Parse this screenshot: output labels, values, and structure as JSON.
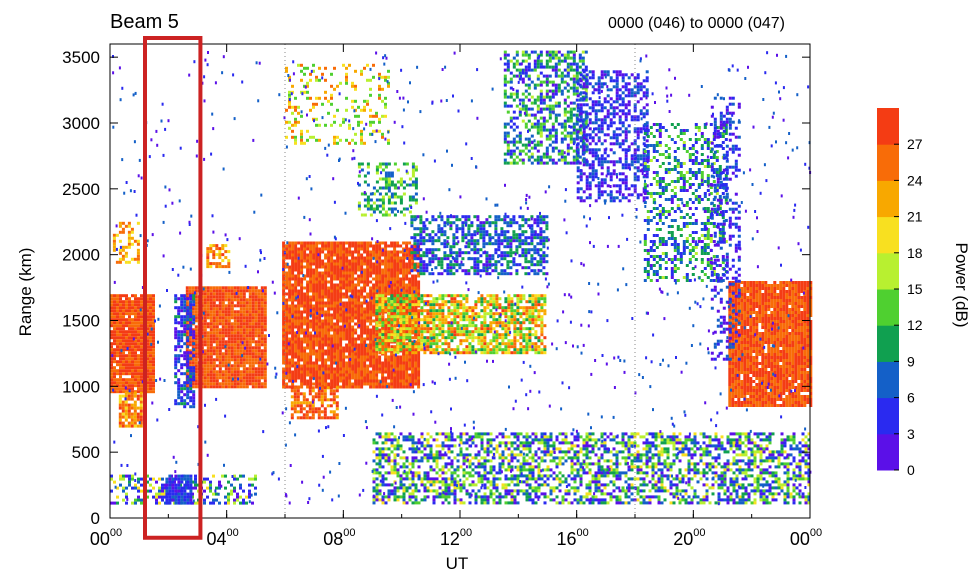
{
  "header": {
    "beam_label": "Beam 5",
    "time_range": "0000 (046) to 0000 (047)"
  },
  "chart_data": {
    "type": "heatmap",
    "xlabel": "UT",
    "ylabel": "Range (km)",
    "x_ticks": [
      {
        "value": 0,
        "hour": "00",
        "minute": "00"
      },
      {
        "value": 4,
        "hour": "04",
        "minute": "00"
      },
      {
        "value": 8,
        "hour": "08",
        "minute": "00"
      },
      {
        "value": 12,
        "hour": "12",
        "minute": "00"
      },
      {
        "value": 16,
        "hour": "16",
        "minute": "00"
      },
      {
        "value": 20,
        "hour": "20",
        "minute": "00"
      },
      {
        "value": 24,
        "hour": "00",
        "minute": "00"
      }
    ],
    "xlim": [
      0,
      24
    ],
    "ylim": [
      0,
      3600
    ],
    "y_ticks": [
      0,
      500,
      1000,
      1500,
      2000,
      2500,
      3000,
      3500
    ],
    "dotted_gridlines_x": [
      6,
      18
    ],
    "colorbar": {
      "label": "Power (dB)",
      "ticks": [
        0,
        3,
        6,
        9,
        12,
        15,
        18,
        21,
        24,
        27
      ],
      "range": [
        0,
        30
      ],
      "colors": [
        "#5b10e8",
        "#2a2af0",
        "#1460c8",
        "#10a050",
        "#4fd030",
        "#b8f030",
        "#f8e020",
        "#f8a800",
        "#f86c08",
        "#f43c14"
      ]
    },
    "highlight_box": {
      "x_start": 1.2,
      "x_end": 3.1,
      "y_start": -150,
      "y_end": 3600,
      "color": "#cc2222"
    },
    "regions": [
      {
        "name": "ground-scatter-0to1",
        "x": [
          0,
          1.5
        ],
        "y": [
          950,
          1700
        ],
        "power": [
          24,
          30
        ],
        "density": 0.95
      },
      {
        "name": "ground-scatter-lower-tail",
        "x": [
          0.3,
          1.1
        ],
        "y": [
          700,
          960
        ],
        "power": [
          20,
          30
        ],
        "density": 0.8
      },
      {
        "name": "patch-0to1-2000",
        "x": [
          0.1,
          1.0
        ],
        "y": [
          1950,
          2250
        ],
        "power": [
          18,
          27
        ],
        "density": 0.45
      },
      {
        "name": "band-2to4",
        "x": [
          2.6,
          5.3
        ],
        "y": [
          1000,
          1760
        ],
        "power": [
          24,
          30
        ],
        "density": 0.95
      },
      {
        "name": "patch-2000-4to5",
        "x": [
          3.3,
          4.1
        ],
        "y": [
          1900,
          2080
        ],
        "power": [
          20,
          28
        ],
        "density": 0.7
      },
      {
        "name": "band-6to10",
        "x": [
          5.9,
          10.6
        ],
        "y": [
          1000,
          2100
        ],
        "power": [
          25,
          30
        ],
        "density": 0.9
      },
      {
        "name": "lower-6to8",
        "x": [
          6.2,
          7.8
        ],
        "y": [
          750,
          1000
        ],
        "power": [
          22,
          30
        ],
        "density": 0.6
      },
      {
        "name": "mixed-9to14",
        "x": [
          9.1,
          14.9
        ],
        "y": [
          1250,
          1700
        ],
        "power": [
          10,
          28
        ],
        "density": 0.75
      },
      {
        "name": "blue-2000-10to15",
        "x": [
          10.3,
          15.0
        ],
        "y": [
          1850,
          2300
        ],
        "power": [
          2,
          12
        ],
        "density": 0.6
      },
      {
        "name": "green-2500-8to10",
        "x": [
          8.5,
          10.5
        ],
        "y": [
          2300,
          2700
        ],
        "power": [
          6,
          18
        ],
        "density": 0.35
      },
      {
        "name": "upper-7to9",
        "x": [
          6.0,
          9.5
        ],
        "y": [
          2850,
          3450
        ],
        "power": [
          12,
          27
        ],
        "density": 0.2
      },
      {
        "name": "arc-13to16",
        "x": [
          13.5,
          16.3
        ],
        "y": [
          2700,
          3550
        ],
        "power": [
          2,
          16
        ],
        "density": 0.55
      },
      {
        "name": "arc-16to18",
        "x": [
          16.0,
          18.4
        ],
        "y": [
          2400,
          3400
        ],
        "power": [
          1,
          8
        ],
        "density": 0.45
      },
      {
        "name": "arc-18to21",
        "x": [
          18.3,
          21.1
        ],
        "y": [
          1800,
          3000
        ],
        "power": [
          2,
          16
        ],
        "density": 0.4
      },
      {
        "name": "right-band-21to24",
        "x": [
          21.2,
          24
        ],
        "y": [
          850,
          1800
        ],
        "power": [
          24,
          30
        ],
        "density": 0.95
      },
      {
        "name": "ionospheric-base",
        "x": [
          9.0,
          24
        ],
        "y": [
          120,
          650
        ],
        "power": [
          0,
          20
        ],
        "density": 0.55
      },
      {
        "name": "base-0to5",
        "x": [
          0,
          5.0
        ],
        "y": [
          120,
          330
        ],
        "power": [
          0,
          20
        ],
        "density": 0.4
      },
      {
        "name": "blue-box-2to3",
        "x": [
          1.9,
          2.8
        ],
        "y": [
          120,
          330
        ],
        "power": [
          2,
          8
        ],
        "density": 0.9
      },
      {
        "name": "wisp-21-blue",
        "x": [
          20.6,
          21.6
        ],
        "y": [
          1200,
          3200
        ],
        "power": [
          0,
          9
        ],
        "density": 0.3
      },
      {
        "name": "spike-2to3-blue",
        "x": [
          2.2,
          2.9
        ],
        "y": [
          850,
          1700
        ],
        "power": [
          1,
          10
        ],
        "density": 0.7
      }
    ]
  }
}
